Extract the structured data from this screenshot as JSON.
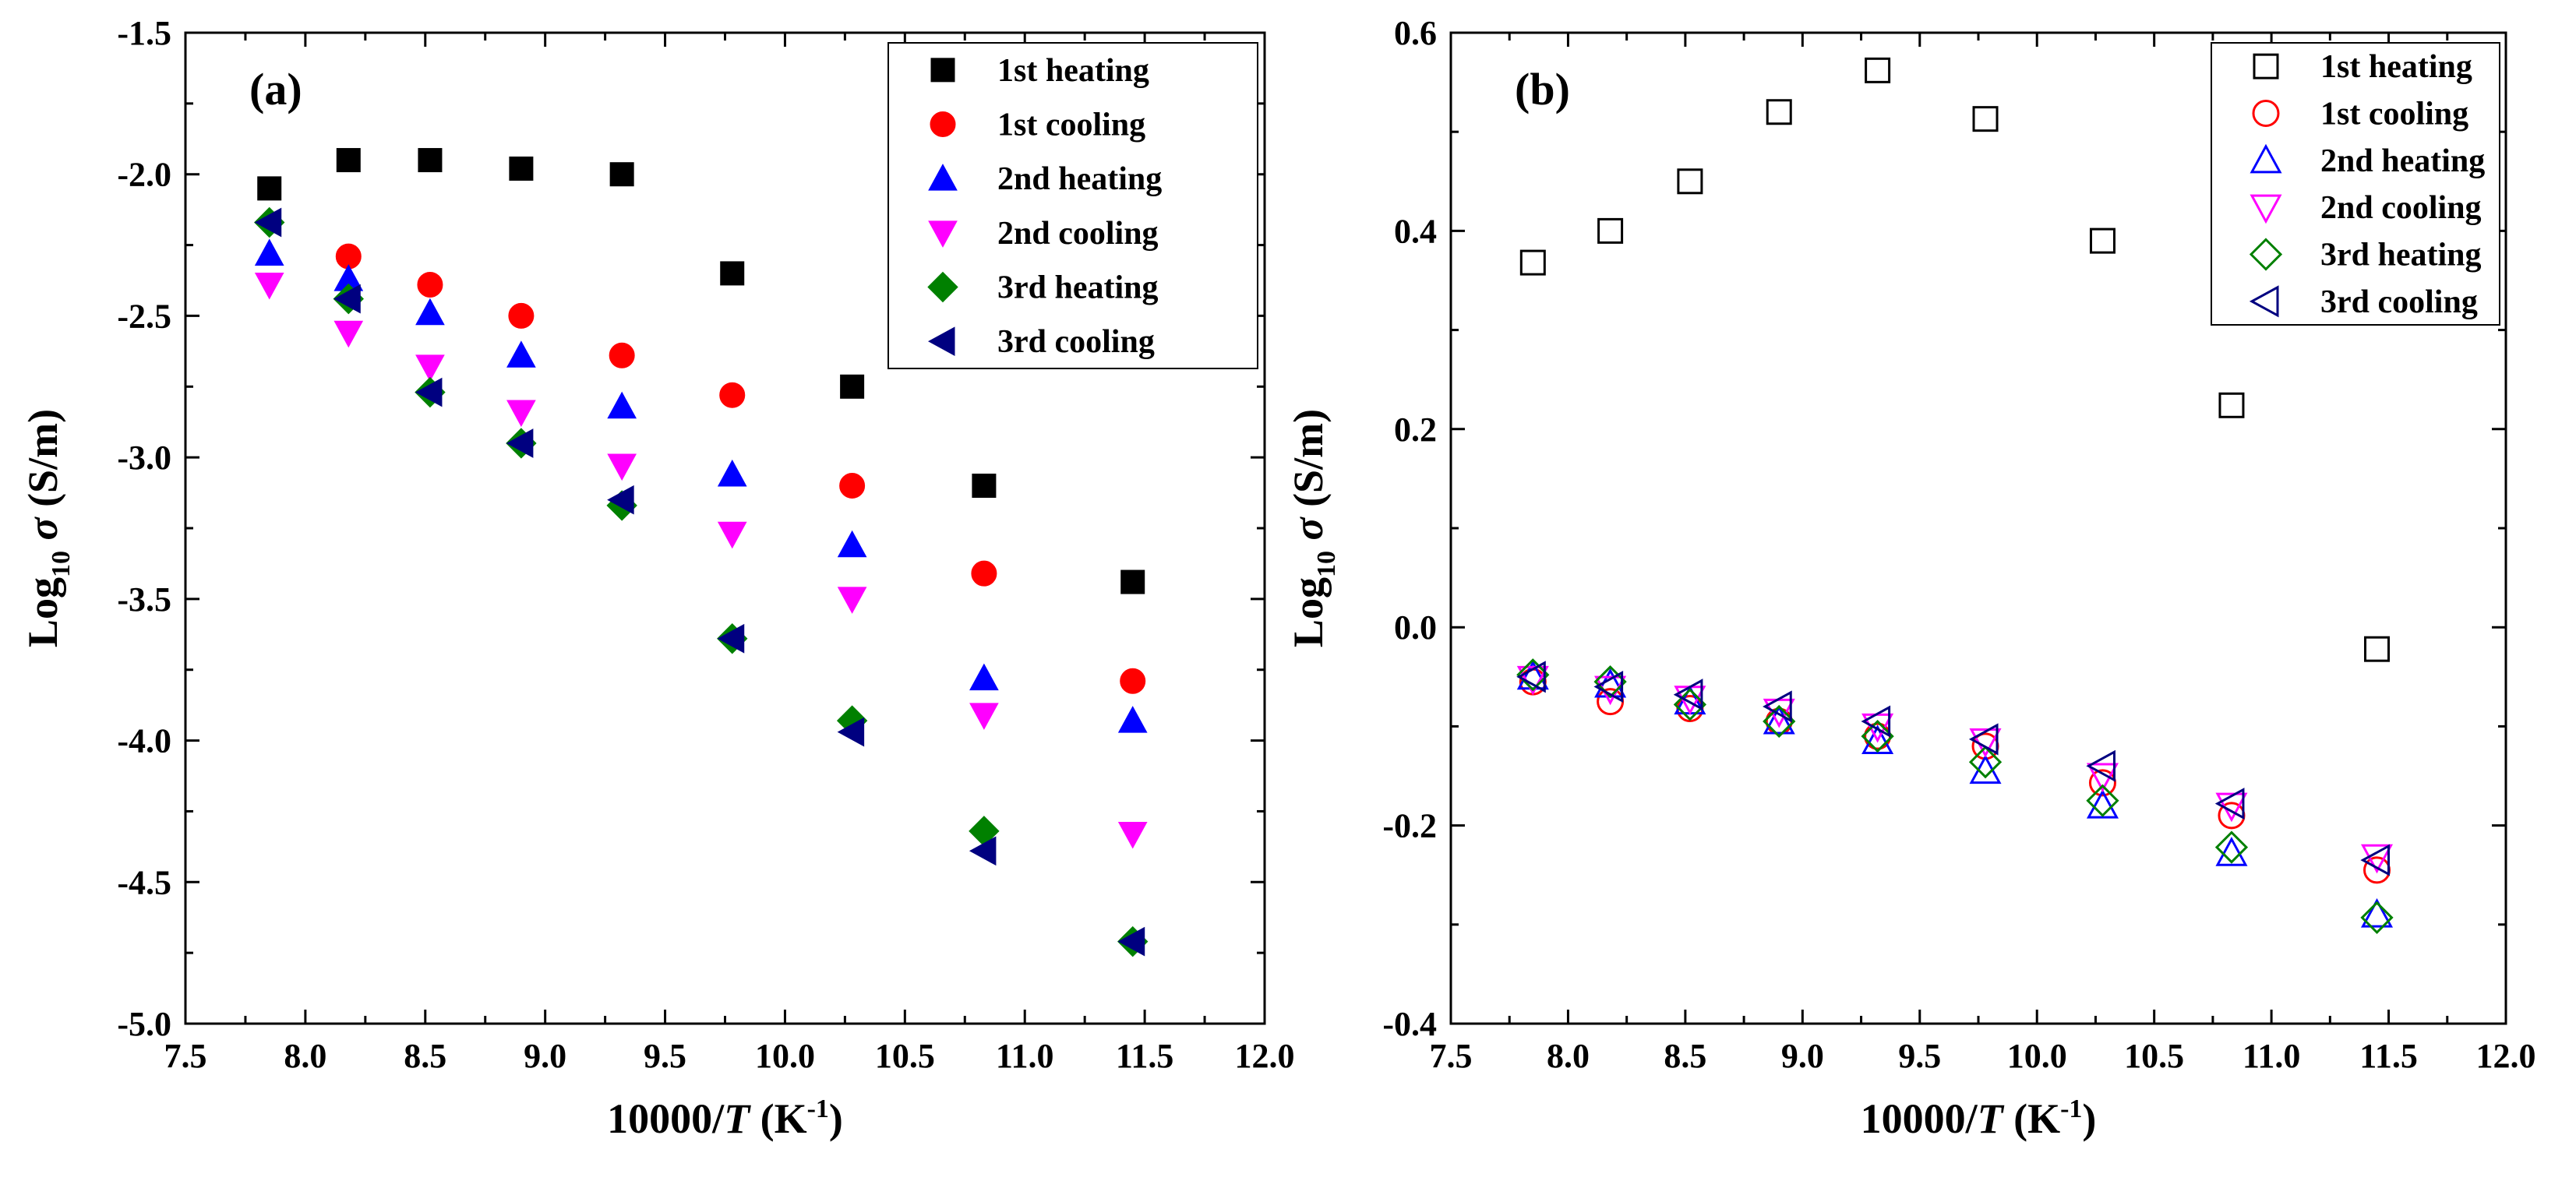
{
  "chart_data": [
    {
      "type": "scatter",
      "panel_label": "(a)",
      "xlabel": {
        "main": "10000/",
        "italic": "T",
        "unit_open": " (K",
        "unit_sup": "-1",
        "unit_close": ")"
      },
      "ylabel": {
        "main": "Log",
        "sub": "10",
        "italic": "σ",
        "unit": " (S/m)"
      },
      "xlim": [
        7.5,
        12.0
      ],
      "ylim": [
        -5.0,
        -1.5
      ],
      "xticks": [
        "7.5",
        "8.0",
        "8.5",
        "9.0",
        "9.5",
        "10.0",
        "10.5",
        "11.0",
        "11.5",
        "12.0"
      ],
      "yticks": [
        "-1.5",
        "-2.0",
        "-2.5",
        "-3.0",
        "-3.5",
        "-4.0",
        "-4.5",
        "-5.0"
      ],
      "legend_position": "top-right",
      "marker_fill": "solid",
      "x": [
        7.85,
        8.18,
        8.52,
        8.9,
        9.32,
        9.78,
        10.28,
        10.83,
        11.45
      ],
      "series": [
        {
          "name": "1st heating",
          "color": "#000000",
          "marker": "square",
          "values": [
            -2.05,
            -1.95,
            -1.95,
            -1.98,
            -2.0,
            -2.35,
            -2.75,
            -3.1,
            -3.44
          ]
        },
        {
          "name": "1st cooling",
          "color": "#ff0000",
          "marker": "circle",
          "values": [
            null,
            -2.29,
            -2.39,
            -2.5,
            -2.64,
            -2.78,
            -3.1,
            -3.41,
            -3.79
          ]
        },
        {
          "name": "2nd heating",
          "color": "#0000ff",
          "marker": "triangle-up",
          "values": [
            -2.28,
            -2.37,
            -2.49,
            -2.64,
            -2.82,
            -3.06,
            -3.31,
            -3.78,
            -3.93
          ]
        },
        {
          "name": "2nd cooling",
          "color": "#ff00ff",
          "marker": "triangle-down",
          "values": [
            -2.39,
            -2.56,
            -2.68,
            -2.84,
            -3.03,
            -3.27,
            -3.5,
            -3.91,
            -4.33
          ]
        },
        {
          "name": "3rd heating",
          "color": "#008000",
          "marker": "diamond",
          "values": [
            -2.17,
            -2.44,
            -2.77,
            -2.95,
            -3.17,
            -3.64,
            -3.93,
            -4.32,
            -4.71
          ]
        },
        {
          "name": "3rd cooling",
          "color": "#000080",
          "marker": "triangle-left",
          "values": [
            -2.17,
            -2.44,
            -2.77,
            -2.95,
            -3.15,
            -3.64,
            -3.97,
            -4.39,
            -4.71
          ]
        }
      ]
    },
    {
      "type": "scatter",
      "panel_label": "(b)",
      "xlabel": {
        "main": "10000/",
        "italic": "T",
        "unit_open": " (K",
        "unit_sup": "-1",
        "unit_close": ")"
      },
      "ylabel": {
        "main": "Log",
        "sub": "10",
        "italic": "σ",
        "unit": " (S/m)"
      },
      "xlim": [
        7.5,
        12.0
      ],
      "ylim": [
        -0.4,
        0.6
      ],
      "xticks": [
        "7.5",
        "8.0",
        "8.5",
        "9.0",
        "9.5",
        "10.0",
        "10.5",
        "11.0",
        "11.5",
        "12.0"
      ],
      "yticks": [
        "0.6",
        "0.4",
        "0.2",
        "0.0",
        "-0.2",
        "-0.4"
      ],
      "legend_position": "top-right",
      "marker_fill": "hollow",
      "x": [
        7.85,
        8.18,
        8.52,
        8.9,
        9.32,
        9.78,
        10.28,
        10.83,
        11.45
      ],
      "series": [
        {
          "name": "1st heating",
          "color": "#000000",
          "marker": "square",
          "values": [
            0.368,
            0.4,
            0.45,
            0.52,
            0.562,
            0.513,
            0.39,
            0.224,
            -0.022
          ]
        },
        {
          "name": "1st cooling",
          "color": "#ff0000",
          "marker": "circle",
          "values": [
            -0.055,
            -0.075,
            -0.082,
            -0.095,
            -0.11,
            -0.12,
            -0.157,
            -0.19,
            -0.245
          ]
        },
        {
          "name": "2nd heating",
          "color": "#0000ff",
          "marker": "triangle-up",
          "values": [
            -0.05,
            -0.058,
            -0.075,
            -0.095,
            -0.115,
            -0.145,
            -0.18,
            -0.228,
            -0.29
          ]
        },
        {
          "name": "2nd cooling",
          "color": "#ff00ff",
          "marker": "triangle-down",
          "values": [
            -0.052,
            -0.062,
            -0.072,
            -0.085,
            -0.1,
            -0.115,
            -0.15,
            -0.18,
            -0.232
          ]
        },
        {
          "name": "3rd heating",
          "color": "#008000",
          "marker": "diamond",
          "values": [
            -0.048,
            -0.055,
            -0.078,
            -0.095,
            -0.11,
            -0.136,
            -0.175,
            -0.222,
            -0.293
          ]
        },
        {
          "name": "3rd cooling",
          "color": "#000080",
          "marker": "triangle-left",
          "values": [
            -0.05,
            -0.06,
            -0.068,
            -0.08,
            -0.095,
            -0.113,
            -0.14,
            -0.178,
            -0.235
          ]
        }
      ]
    }
  ]
}
